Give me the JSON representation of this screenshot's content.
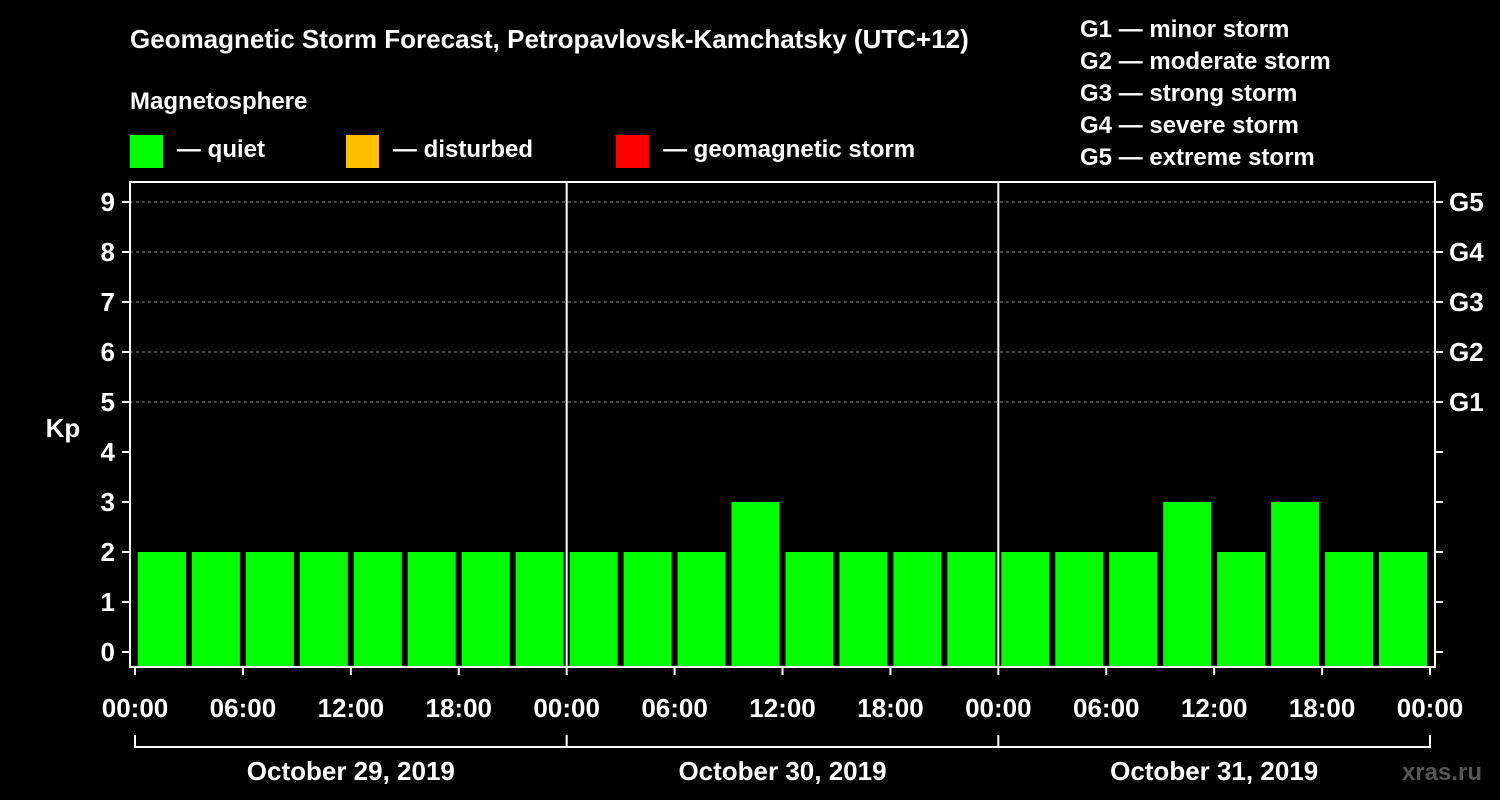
{
  "chart_data": {
    "type": "bar",
    "title": "Geomagnetic Storm Forecast, Petropavlovsk-Kamchatsky (UTC+12)",
    "ylabel": "Kp",
    "ylim": [
      0,
      9
    ],
    "yticks": [
      0,
      1,
      2,
      3,
      4,
      5,
      6,
      7,
      8,
      9
    ],
    "right_axis": [
      {
        "kp": 5,
        "label": "G1"
      },
      {
        "kp": 6,
        "label": "G2"
      },
      {
        "kp": 7,
        "label": "G3"
      },
      {
        "kp": 8,
        "label": "G4"
      },
      {
        "kp": 9,
        "label": "G5"
      }
    ],
    "storm_scale": [
      "G1 — minor storm",
      "G2 — moderate storm",
      "G3 — strong storm",
      "G4 — severe storm",
      "G5 — extreme storm"
    ],
    "legend_title": "Magnetosphere",
    "legend": [
      {
        "label": "— quiet",
        "color": "#00ff00"
      },
      {
        "label": "— disturbed",
        "color": "#ffbf00"
      },
      {
        "label": "— geomagnetic storm",
        "color": "#ff0000"
      }
    ],
    "xticks": [
      "00:00",
      "06:00",
      "12:00",
      "18:00",
      "00:00",
      "06:00",
      "12:00",
      "18:00",
      "00:00",
      "06:00",
      "12:00",
      "18:00",
      "00:00"
    ],
    "days": [
      "October 29, 2019",
      "October 30, 2019",
      "October 31, 2019"
    ],
    "interval_hours": 3,
    "values": [
      2,
      2,
      2,
      2,
      2,
      2,
      2,
      2,
      2,
      2,
      2,
      3,
      2,
      2,
      2,
      2,
      2,
      2,
      2,
      3,
      2,
      3,
      2,
      2
    ],
    "status_colors": {
      "quiet": "#00ff00",
      "disturbed": "#ffbf00",
      "storm": "#ff0000"
    },
    "watermark": "xras.ru"
  }
}
